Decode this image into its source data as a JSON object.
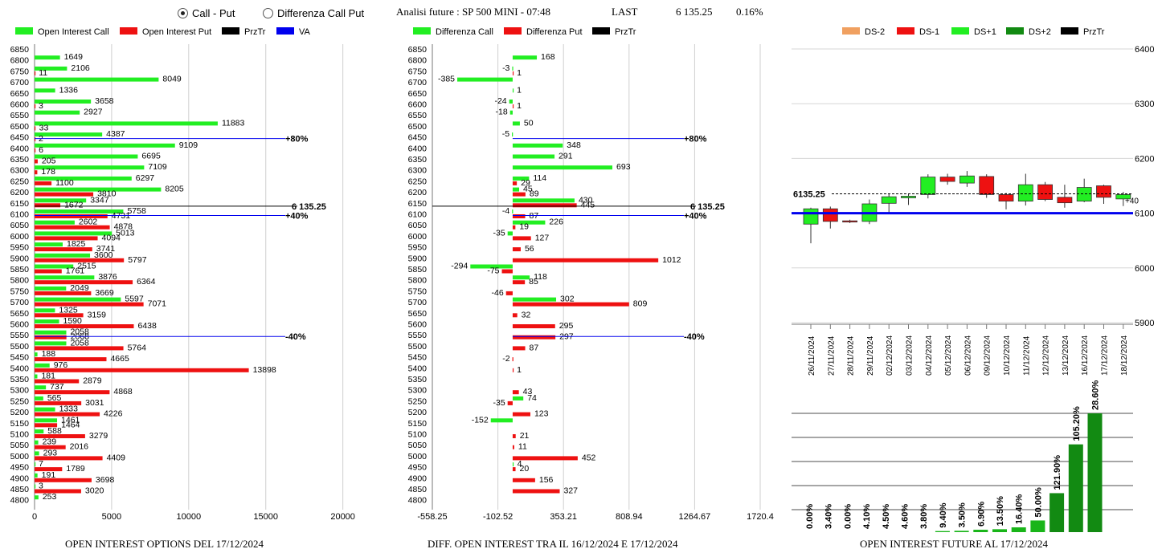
{
  "controls": {
    "radio_call_put": "Call - Put",
    "radio_diff": "Differenza Call Put",
    "selected": "call_put"
  },
  "header": {
    "title": "Analisi future : SP 500 MINI - 07:48",
    "last_label": "LAST",
    "last_value": "6 135.25",
    "change": "0.16%"
  },
  "colors": {
    "call": "#22ee22",
    "put": "#ee1111",
    "prztr": "#000000",
    "va": "#0000ee",
    "dark_green": "#128a12",
    "light_green": "#19b519"
  },
  "chart_data": [
    {
      "id": "oi",
      "type": "bar",
      "orientation": "horizontal",
      "title": "OPEN INTEREST OPTIONS DEL 17/12/2024",
      "legend": [
        {
          "name": "Open Interest Call",
          "color": "#22ee22"
        },
        {
          "name": "Open Interest Put",
          "color": "#ee1111"
        },
        {
          "name": "PrzTr",
          "color": "#000000"
        },
        {
          "name": "VA",
          "color": "#0000ee"
        }
      ],
      "strikes": [
        6850,
        6800,
        6750,
        6700,
        6650,
        6600,
        6550,
        6500,
        6450,
        6400,
        6350,
        6300,
        6250,
        6200,
        6150,
        6100,
        6050,
        6000,
        5950,
        5900,
        5850,
        5800,
        5750,
        5700,
        5650,
        5600,
        5550,
        5500,
        5450,
        5400,
        5350,
        5300,
        5250,
        5200,
        5150,
        5100,
        5050,
        5000,
        4950,
        4900,
        4850,
        4800
      ],
      "call": [
        null,
        1649,
        2106,
        8049,
        1336,
        3658,
        2927,
        11883,
        4387,
        9109,
        6695,
        7109,
        6297,
        8205,
        3347,
        5758,
        2602,
        5013,
        1825,
        3600,
        2515,
        3876,
        2049,
        5597,
        1325,
        1590,
        2058,
        2058,
        188,
        976,
        181,
        737,
        565,
        1333,
        1461,
        588,
        239,
        293,
        7,
        191,
        3,
        253
      ],
      "put": [
        null,
        null,
        11,
        null,
        null,
        3,
        null,
        33,
        2,
        6,
        205,
        178,
        1100,
        3810,
        1672,
        4731,
        4878,
        4094,
        3741,
        5797,
        1761,
        6364,
        3669,
        7071,
        3159,
        6438,
        2068,
        5764,
        4665,
        13898,
        2879,
        4868,
        3031,
        4226,
        1464,
        3279,
        2016,
        4409,
        1789,
        3698,
        3020,
        null
      ],
      "xlim": [
        0,
        22000
      ],
      "xticks": [
        0,
        5000,
        10000,
        15000,
        20000
      ],
      "markers": [
        {
          "strike": 6450,
          "label": "+80%"
        },
        {
          "strike": 6100,
          "label": "+40%"
        },
        {
          "strike": 5550,
          "label": "-40%"
        }
      ],
      "prztr": {
        "value": 6135.25,
        "label": "6 135.25"
      }
    },
    {
      "id": "diff",
      "type": "bar",
      "orientation": "horizontal",
      "title": "DIFF. OPEN INTEREST TRA IL 16/12/2024 E 17/12/2024",
      "legend": [
        {
          "name": "Differenza Call",
          "color": "#22ee22"
        },
        {
          "name": "Differenza Put",
          "color": "#ee1111"
        },
        {
          "name": "PrzTr",
          "color": "#000000"
        }
      ],
      "strikes": [
        6850,
        6800,
        6750,
        6700,
        6650,
        6600,
        6550,
        6500,
        6450,
        6400,
        6350,
        6300,
        6250,
        6200,
        6150,
        6100,
        6050,
        6000,
        5950,
        5900,
        5850,
        5800,
        5750,
        5700,
        5650,
        5600,
        5550,
        5500,
        5450,
        5400,
        5350,
        5300,
        5250,
        5200,
        5150,
        5100,
        5050,
        5000,
        4950,
        4900,
        4850,
        4800
      ],
      "call": [
        null,
        168,
        -3,
        -385,
        1,
        -24,
        -18,
        50,
        -5,
        348,
        291,
        693,
        114,
        45,
        430,
        -4,
        226,
        -35,
        null,
        null,
        -294,
        118,
        null,
        302,
        null,
        null,
        null,
        null,
        null,
        null,
        null,
        null,
        74,
        null,
        -152,
        null,
        null,
        null,
        4,
        null,
        null,
        null
      ],
      "put": [
        null,
        null,
        1,
        null,
        null,
        1,
        null,
        null,
        null,
        null,
        null,
        null,
        29,
        89,
        445,
        87,
        19,
        127,
        56,
        1012,
        -75,
        85,
        -46,
        809,
        32,
        295,
        297,
        87,
        -2,
        1,
        null,
        43,
        -35,
        123,
        null,
        21,
        11,
        452,
        20,
        156,
        327,
        null
      ],
      "xlim": [
        -558.25,
        1720.4
      ],
      "xticks": [
        -558.25,
        -102.52,
        353.21,
        808.94,
        1264.67,
        1720.4
      ],
      "markers": [
        {
          "strike": 6450,
          "label": "+80%"
        },
        {
          "strike": 6100,
          "label": "+40%"
        },
        {
          "strike": 5550,
          "label": "-40%"
        }
      ],
      "prztr": {
        "value": 6135.25,
        "label": "6 135.25"
      }
    },
    {
      "id": "candles",
      "type": "candlestick",
      "legend": [
        {
          "name": "DS-2",
          "color": "#f0a060"
        },
        {
          "name": "DS-1",
          "color": "#ee1111"
        },
        {
          "name": "DS+1",
          "color": "#22ee22"
        },
        {
          "name": "DS+2",
          "color": "#128a12"
        },
        {
          "name": "PrzTr",
          "color": "#000000"
        }
      ],
      "dates": [
        "26/11/2024",
        "27/11/2024",
        "28/11/2024",
        "29/11/2024",
        "02/12/2024",
        "03/12/2024",
        "04/12/2024",
        "05/12/2024",
        "06/12/2024",
        "09/12/2024",
        "10/12/2024",
        "11/12/2024",
        "12/12/2024",
        "13/12/2024",
        "16/12/2024",
        "17/12/2024",
        "18/12/2024"
      ],
      "ohlc": [
        [
          6080,
          6110,
          6045,
          6108
        ],
        [
          6108,
          6112,
          6072,
          6085
        ],
        [
          6086,
          6088,
          6082,
          6084
        ],
        [
          6085,
          6125,
          6080,
          6117
        ],
        [
          6118,
          6136,
          6100,
          6130
        ],
        [
          6128,
          6136,
          6115,
          6131
        ],
        [
          6134,
          6171,
          6127,
          6166
        ],
        [
          6166,
          6172,
          6152,
          6158
        ],
        [
          6155,
          6177,
          6148,
          6168
        ],
        [
          6167,
          6171,
          6128,
          6134
        ],
        [
          6134,
          6137,
          6107,
          6122
        ],
        [
          6122,
          6172,
          6114,
          6152
        ],
        [
          6152,
          6157,
          6122,
          6125
        ],
        [
          6129,
          6152,
          6110,
          6119
        ],
        [
          6122,
          6163,
          6120,
          6147
        ],
        [
          6150,
          6152,
          6117,
          6129
        ],
        [
          6126,
          6139,
          6113,
          6134
        ]
      ],
      "ylim": [
        5900,
        6400
      ],
      "yticks": [
        6400,
        6300,
        6200,
        6100,
        6000,
        5900
      ],
      "prztr": {
        "value": 6135.25,
        "label": "6135.25"
      },
      "va_level": 6100,
      "right_label": "+40"
    },
    {
      "id": "future_oi",
      "type": "bar",
      "title": "OPEN INTEREST FUTURE AL 17/12/2024",
      "labels": [
        "0.00%",
        "3.40%",
        "0.00%",
        "4.10%",
        "4.50%",
        "4.60%",
        "3.80%",
        "9.40%",
        "3.50%",
        "6.90%",
        "13.50%",
        "16.40%",
        "50.00%",
        "121.90%",
        "105.20%",
        "28.60%"
      ],
      "values": [
        0,
        0,
        0,
        0,
        0,
        0,
        0,
        0.4,
        0.5,
        0.9,
        1.1,
        1.8,
        4.4,
        14.7,
        33.1,
        44.8
      ]
    }
  ]
}
